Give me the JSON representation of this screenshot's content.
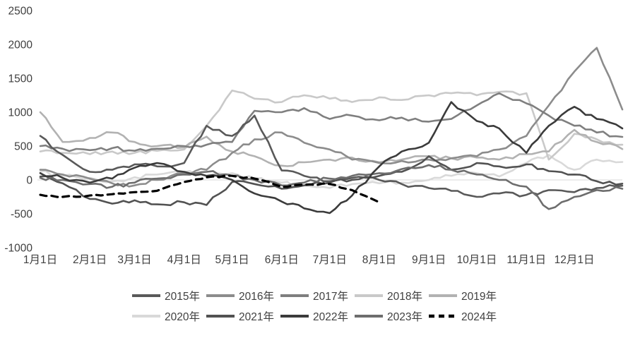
{
  "chart_data": {
    "type": "line",
    "title": "",
    "xlabel": "",
    "ylabel": "",
    "grid": "zero-line-only",
    "legend_position": "bottom",
    "ylim": [
      -1000,
      2500
    ],
    "y_ticks": [
      2500,
      2000,
      1500,
      1000,
      500,
      0,
      -500,
      -1000
    ],
    "x_tick_labels": [
      "1月1日",
      "2月1日",
      "3月1日",
      "4月1日",
      "5月1日",
      "6月1日",
      "7月1日",
      "8月1日",
      "9月1日",
      "10月1日",
      "11月1日",
      "12月1日"
    ],
    "x_tick_days": [
      1,
      32,
      60,
      91,
      121,
      152,
      182,
      213,
      244,
      274,
      305,
      335
    ],
    "x_unit": "day_of_year",
    "sample_days": [
      1,
      15,
      32,
      46,
      60,
      74,
      91,
      105,
      121,
      135,
      152,
      166,
      182,
      196,
      213,
      227,
      244,
      258,
      274,
      288,
      305,
      319,
      335,
      349,
      365
    ],
    "series": [
      {
        "name": "2015年",
        "color": "#595959",
        "dash": false,
        "values": [
          650,
          370,
          120,
          150,
          230,
          200,
          250,
          800,
          650,
          950,
          140,
          60,
          -20,
          30,
          0,
          -60,
          -120,
          -160,
          -250,
          -200,
          -220,
          -150,
          -180,
          -120,
          -85
        ]
      },
      {
        "name": "2016年",
        "color": "#8c8c8c",
        "dash": false,
        "values": [
          150,
          80,
          20,
          -50,
          -80,
          0,
          100,
          150,
          400,
          600,
          700,
          550,
          450,
          300,
          250,
          280,
          300,
          320,
          350,
          450,
          650,
          1100,
          1600,
          1950,
          1040
        ]
      },
      {
        "name": "2017年",
        "color": "#7f7f7f",
        "dash": false,
        "values": [
          500,
          460,
          440,
          470,
          430,
          460,
          500,
          520,
          560,
          1020,
          1000,
          1060,
          900,
          950,
          880,
          920,
          860,
          900,
          1100,
          1280,
          1130,
          950,
          800,
          700,
          635
        ]
      },
      {
        "name": "2018年",
        "color": "#c9c9c9",
        "dash": false,
        "values": [
          420,
          400,
          380,
          420,
          400,
          430,
          450,
          800,
          1320,
          1200,
          1150,
          1250,
          1200,
          1150,
          1220,
          1180,
          1250,
          1280,
          1250,
          1300,
          1280,
          300,
          680,
          600,
          520
        ]
      },
      {
        "name": "2019年",
        "color": "#b2b2b2",
        "dash": false,
        "values": [
          1000,
          560,
          620,
          700,
          560,
          500,
          480,
          640,
          420,
          350,
          210,
          260,
          300,
          330,
          260,
          300,
          350,
          320,
          330,
          300,
          380,
          420,
          740,
          560,
          455
        ]
      },
      {
        "name": "2020年",
        "color": "#d9d9d9",
        "dash": false,
        "values": [
          120,
          60,
          30,
          -20,
          40,
          80,
          120,
          60,
          100,
          20,
          -40,
          -80,
          -120,
          -60,
          -50,
          -40,
          0,
          60,
          100,
          50,
          250,
          370,
          150,
          300,
          265
        ]
      },
      {
        "name": "2021年",
        "color": "#525252",
        "dash": false,
        "values": [
          50,
          -50,
          -280,
          -350,
          -300,
          -360,
          -330,
          -370,
          -30,
          -60,
          -130,
          -80,
          -40,
          0,
          60,
          120,
          350,
          150,
          250,
          200,
          230,
          130,
          80,
          -20,
          -55
        ]
      },
      {
        "name": "2022年",
        "color": "#3b3b3b",
        "dash": false,
        "values": [
          100,
          30,
          -40,
          20,
          180,
          250,
          120,
          60,
          0,
          -200,
          -320,
          -420,
          -490,
          -230,
          200,
          420,
          550,
          1150,
          870,
          760,
          400,
          800,
          1080,
          900,
          760
        ]
      },
      {
        "name": "2023年",
        "color": "#6d6d6d",
        "dash": false,
        "values": [
          30,
          0,
          -60,
          -100,
          -40,
          20,
          80,
          120,
          60,
          0,
          -80,
          -40,
          20,
          60,
          100,
          160,
          220,
          150,
          80,
          0,
          -100,
          -430,
          -250,
          -150,
          -130
        ]
      },
      {
        "name": "2024年",
        "color": "#000000",
        "dash": true,
        "values": [
          -220,
          -250,
          -230,
          -210,
          -180,
          -160,
          -30,
          40,
          60,
          20,
          -100,
          -70,
          -60,
          -150,
          -330
        ],
        "days": [
          1,
          15,
          32,
          46,
          60,
          74,
          91,
          105,
          121,
          135,
          152,
          166,
          182,
          196,
          213
        ]
      }
    ]
  },
  "legend": {
    "rows": [
      [
        "2015年",
        "2016年",
        "2017年",
        "2018年",
        "2019年"
      ],
      [
        "2020年",
        "2021年",
        "2022年",
        "2023年",
        "2024年"
      ]
    ]
  }
}
